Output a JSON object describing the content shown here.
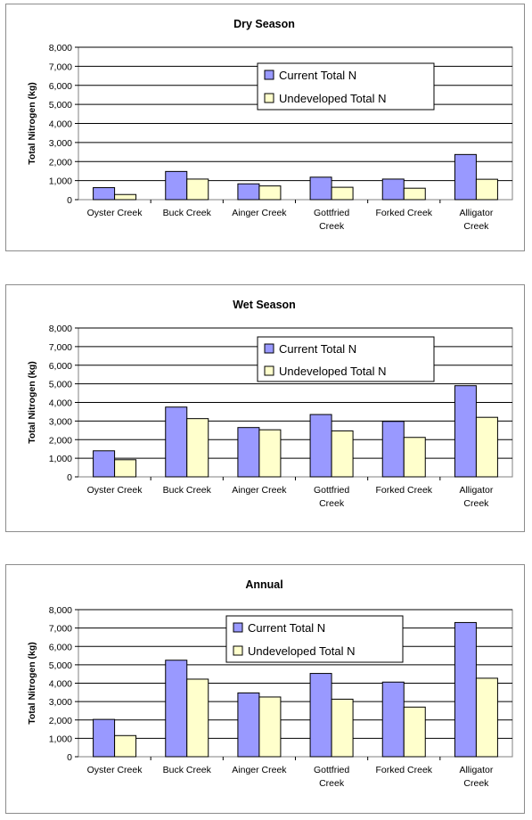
{
  "chart_data": [
    {
      "type": "bar",
      "title": "Dry Season",
      "ylabel": "Total Nitrogen (kg)",
      "xlabel": "",
      "ylim": [
        0,
        8000
      ],
      "yticks": [
        "0",
        "1,000",
        "2,000",
        "3,000",
        "4,000",
        "5,000",
        "6,000",
        "7,000",
        "8,000"
      ],
      "categories": [
        "Oyster Creek",
        "Buck Creek",
        "Ainger Creek",
        "Gottfried Creek",
        "Forked Creek",
        "Alligator Creek"
      ],
      "series": [
        {
          "name": "Current Total N",
          "color": "#9999ff",
          "values": [
            630,
            1480,
            830,
            1180,
            1080,
            2370
          ]
        },
        {
          "name": "Undeveloped Total N",
          "color": "#ffffcc",
          "values": [
            270,
            1080,
            720,
            650,
            600,
            1070
          ]
        }
      ],
      "grid": true,
      "legend_position": "top-right"
    },
    {
      "type": "bar",
      "title": "Wet Season",
      "ylabel": "Total Nitrogen (kg)",
      "xlabel": "",
      "ylim": [
        0,
        8000
      ],
      "yticks": [
        "0",
        "1,000",
        "2,000",
        "3,000",
        "4,000",
        "5,000",
        "6,000",
        "7,000",
        "8,000"
      ],
      "categories": [
        "Oyster Creek",
        "Buck Creek",
        "Ainger Creek",
        "Gottfried Creek",
        "Forked Creek",
        "Alligator Creek"
      ],
      "series": [
        {
          "name": "Current Total N",
          "color": "#9999ff",
          "values": [
            1400,
            3750,
            2650,
            3350,
            2980,
            4900
          ]
        },
        {
          "name": "Undeveloped Total N",
          "color": "#ffffcc",
          "values": [
            920,
            3130,
            2530,
            2470,
            2120,
            3200
          ]
        }
      ],
      "grid": true,
      "legend_position": "top-right"
    },
    {
      "type": "bar",
      "title": "Annual",
      "ylabel": "Total Nitrogen (kg)",
      "xlabel": "",
      "ylim": [
        0,
        8000
      ],
      "yticks": [
        "0",
        "1,000",
        "2,000",
        "3,000",
        "4,000",
        "5,000",
        "6,000",
        "7,000",
        "8,000"
      ],
      "categories": [
        "Oyster Creek",
        "Buck Creek",
        "Ainger Creek",
        "Gottfried Creek",
        "Forked Creek",
        "Alligator Creek"
      ],
      "series": [
        {
          "name": "Current Total N",
          "color": "#9999ff",
          "values": [
            2030,
            5250,
            3470,
            4530,
            4060,
            7300
          ]
        },
        {
          "name": "Undeveloped Total N",
          "color": "#ffffcc",
          "values": [
            1150,
            4220,
            3250,
            3130,
            2700,
            4270
          ]
        }
      ],
      "grid": true,
      "legend_position": "top-right"
    }
  ]
}
